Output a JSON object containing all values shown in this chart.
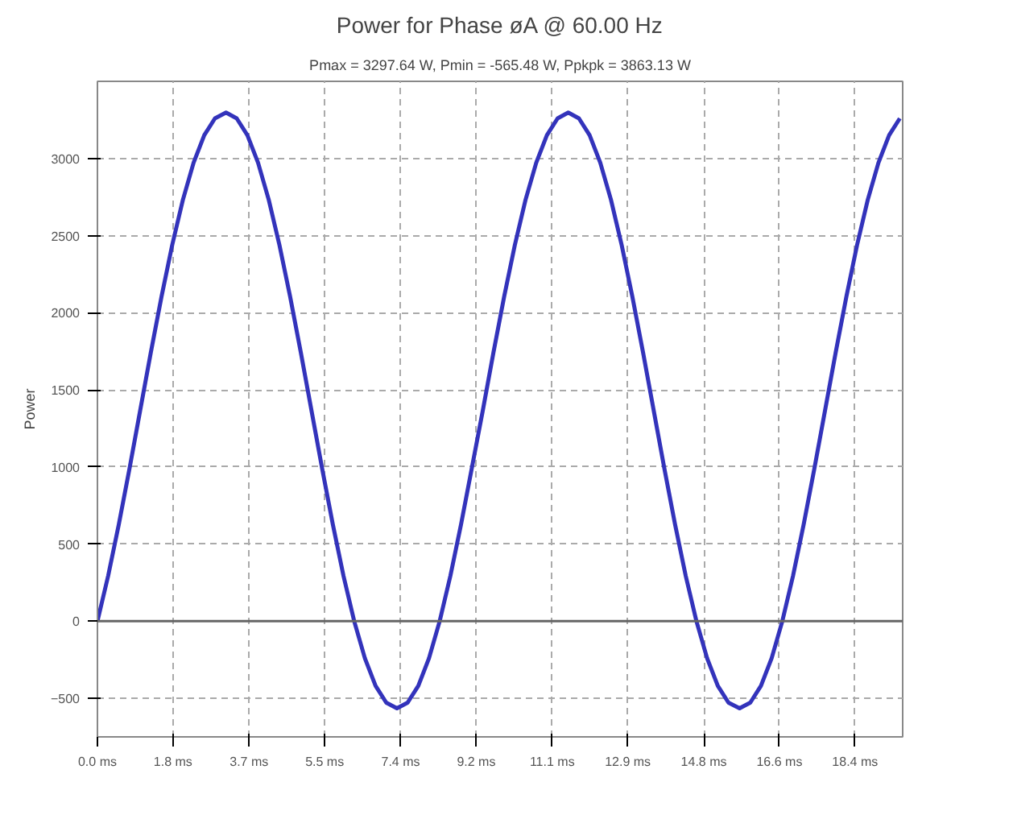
{
  "chart_data": {
    "type": "line",
    "title": "Power for Phase øA @ 60.00 Hz",
    "subtitle": "Pmax = 3297.64 W, Pmin = -565.48 W, Ppkpk = 3863.13 W",
    "ylabel": "Power",
    "x": [
      0,
      0.26,
      0.52,
      0.78,
      1.04,
      1.3,
      1.56,
      1.82,
      2.08,
      2.34,
      2.6,
      2.86,
      3.13,
      3.39,
      3.65,
      3.91,
      4.17,
      4.43,
      4.69,
      4.95,
      5.21,
      5.47,
      5.73,
      5.99,
      6.25,
      6.51,
      6.77,
      7.03,
      7.29,
      7.55,
      7.81,
      8.07,
      8.33,
      8.59,
      8.85,
      9.11,
      9.38,
      9.64,
      9.9,
      10.16,
      10.42,
      10.68,
      10.94,
      11.2,
      11.46,
      11.72,
      11.98,
      12.24,
      12.5,
      12.76,
      13.02,
      13.28,
      13.54,
      13.8,
      14.06,
      14.32,
      14.58,
      14.84,
      15.1,
      15.36,
      15.63,
      15.89,
      16.15,
      16.41,
      16.67,
      16.93,
      17.19,
      17.45,
      17.71,
      17.97,
      18.23,
      18.49,
      18.75,
      19.01,
      19.27,
      19.53
    ],
    "series": [
      {
        "color": "#3333bb",
        "values": [
          0,
          293,
          627,
          989,
          1366,
          1743,
          2105,
          2439,
          2732,
          2972,
          3151,
          3260,
          3298,
          3260,
          3151,
          2972,
          2732,
          2439,
          2105,
          1743,
          1366,
          989,
          627,
          293,
          0,
          -240,
          -419,
          -528,
          -565,
          -528,
          -419,
          -240,
          0,
          293,
          627,
          989,
          1366,
          1743,
          2105,
          2439,
          2732,
          2972,
          3151,
          3260,
          3298,
          3260,
          3151,
          2972,
          2732,
          2439,
          2105,
          1743,
          1366,
          989,
          627,
          293,
          0,
          -240,
          -419,
          -528,
          -565,
          -528,
          -419,
          -240,
          0,
          293,
          627,
          989,
          1366,
          1743,
          2105,
          2439,
          2732,
          2972,
          3151,
          3260
        ]
      }
    ],
    "xlim": [
      0,
      19.6
    ],
    "ylim": [
      -750,
      3500
    ],
    "xticks": [
      {
        "value": 0,
        "label": "0.0 ms"
      },
      {
        "value": 1.84,
        "label": "1.8 ms"
      },
      {
        "value": 3.69,
        "label": "3.7 ms"
      },
      {
        "value": 5.53,
        "label": "5.5 ms"
      },
      {
        "value": 7.38,
        "label": "7.4 ms"
      },
      {
        "value": 9.22,
        "label": "9.2 ms"
      },
      {
        "value": 11.07,
        "label": "11.1 ms"
      },
      {
        "value": 12.91,
        "label": "12.9 ms"
      },
      {
        "value": 14.76,
        "label": "14.8 ms"
      },
      {
        "value": 16.6,
        "label": "16.6 ms"
      },
      {
        "value": 18.44,
        "label": "18.4 ms"
      }
    ],
    "yticks": [
      -500,
      0,
      500,
      1000,
      1500,
      2000,
      2500,
      3000
    ],
    "ref_lines": [
      {
        "axis": "y",
        "value": 0,
        "color": "#666666"
      }
    ],
    "grid": true,
    "marker": "none",
    "line_style": "solid"
  }
}
